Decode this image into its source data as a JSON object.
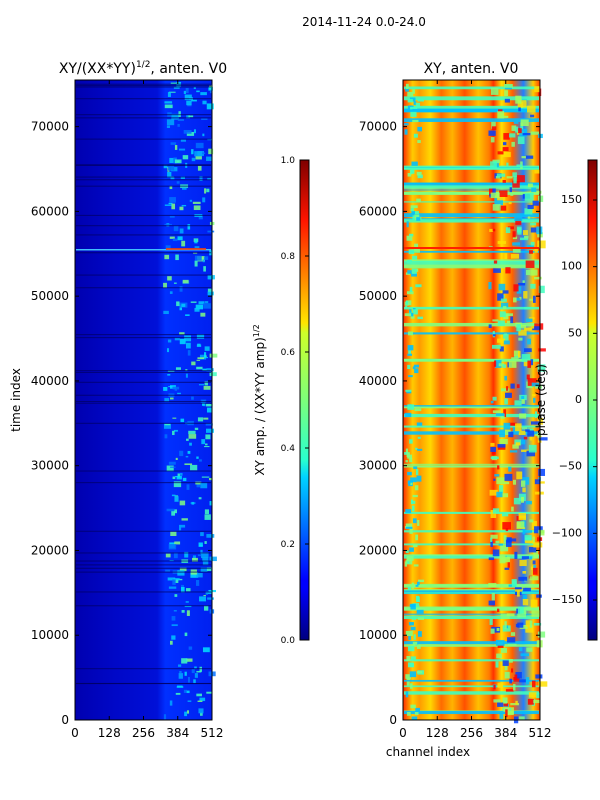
{
  "figure": {
    "suptitle": "2014-11-24 0.0-24.0"
  },
  "chart_data": [
    {
      "type": "heatmap",
      "title_main": "XY/(XX*YY)",
      "title_exp": "1/2",
      "title_tail": ", anten. V0",
      "xlabel": "",
      "ylabel": "time index",
      "xlim": [
        0,
        512
      ],
      "ylim": [
        0,
        75500
      ],
      "xticks": [
        0,
        128,
        256,
        384,
        512
      ],
      "yticks": [
        0,
        10000,
        20000,
        30000,
        40000,
        50000,
        60000,
        70000
      ],
      "colormap": "jet",
      "colorbar": {
        "label_main": "XY amp. / (XX*YY amp)",
        "label_exp": "1/2",
        "range": [
          0.0,
          1.0
        ],
        "ticks": [
          "0.0",
          "0.2",
          "0.4",
          "0.6",
          "0.8",
          "1.0"
        ]
      }
    },
    {
      "type": "heatmap",
      "title": "XY, anten. V0",
      "xlabel": "channel index",
      "ylabel": "",
      "xlim": [
        0,
        512
      ],
      "ylim": [
        0,
        75500
      ],
      "xticks": [
        0,
        128,
        256,
        384,
        512
      ],
      "yticks": [
        0,
        10000,
        20000,
        30000,
        40000,
        50000,
        60000,
        70000
      ],
      "colormap": "jet",
      "colorbar": {
        "label": "phase (deg)",
        "range": [
          -180,
          180
        ],
        "ticks": [
          "−150",
          "−100",
          "−50",
          "0",
          "50",
          "100",
          "150"
        ]
      }
    }
  ]
}
